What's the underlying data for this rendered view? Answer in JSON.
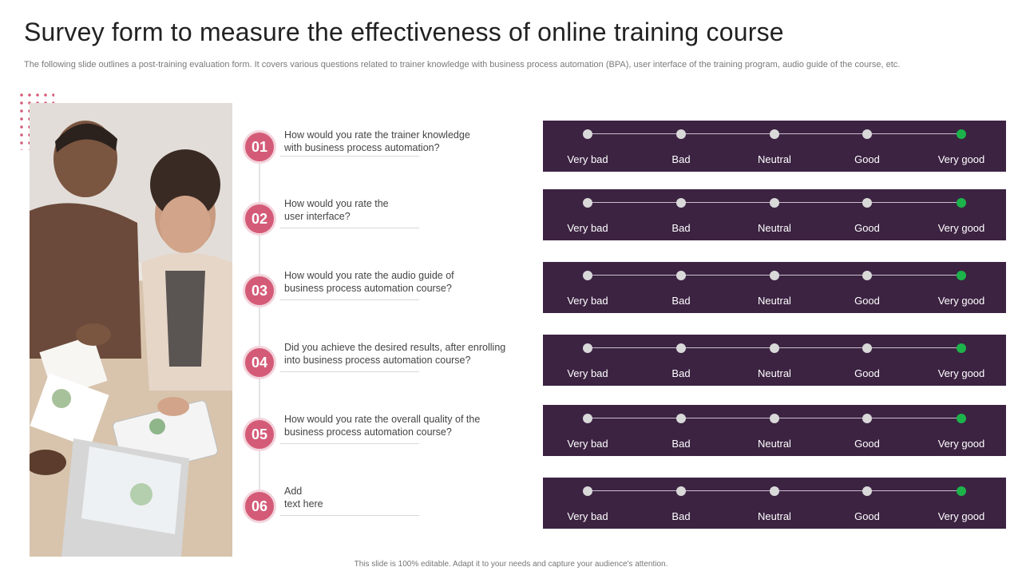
{
  "slide": {
    "title": "Survey form to measure the effectiveness of online training course",
    "subtitle": "The following slide outlines a post-training evaluation form. It covers various questions related to trainer knowledge with business process automation (BPA), user interface of the training program, audio guide of the course, etc.",
    "footer": "This slide is 100% editable. Adapt it to your needs and capture your audience's attention."
  },
  "colors": {
    "accent": "#d45b78",
    "panel": "#3c2342",
    "selected": "#1db34b",
    "unselected": "#d9d9d9"
  },
  "rating_scale": [
    "Very bad",
    "Bad",
    "Neutral",
    "Good",
    "Very good"
  ],
  "questions": [
    {
      "number": "01",
      "text": "How would  you rate the trainer knowledge\nwith business process automation?",
      "selected_index": 4
    },
    {
      "number": "02",
      "text": "How would  you rate the\nuser interface?",
      "selected_index": 4
    },
    {
      "number": "03",
      "text": "How would you rate the audio guide of\nbusiness process automation course?",
      "selected_index": 4
    },
    {
      "number": "04",
      "text": "Did you achieve the desired results, after enrolling\ninto business process automation course?",
      "selected_index": 4
    },
    {
      "number": "05",
      "text": "How would you rate the overall  quality of the\nbusiness process automation course?",
      "selected_index": 4
    },
    {
      "number": "06",
      "text": "Add\ntext here",
      "selected_index": 4
    }
  ]
}
